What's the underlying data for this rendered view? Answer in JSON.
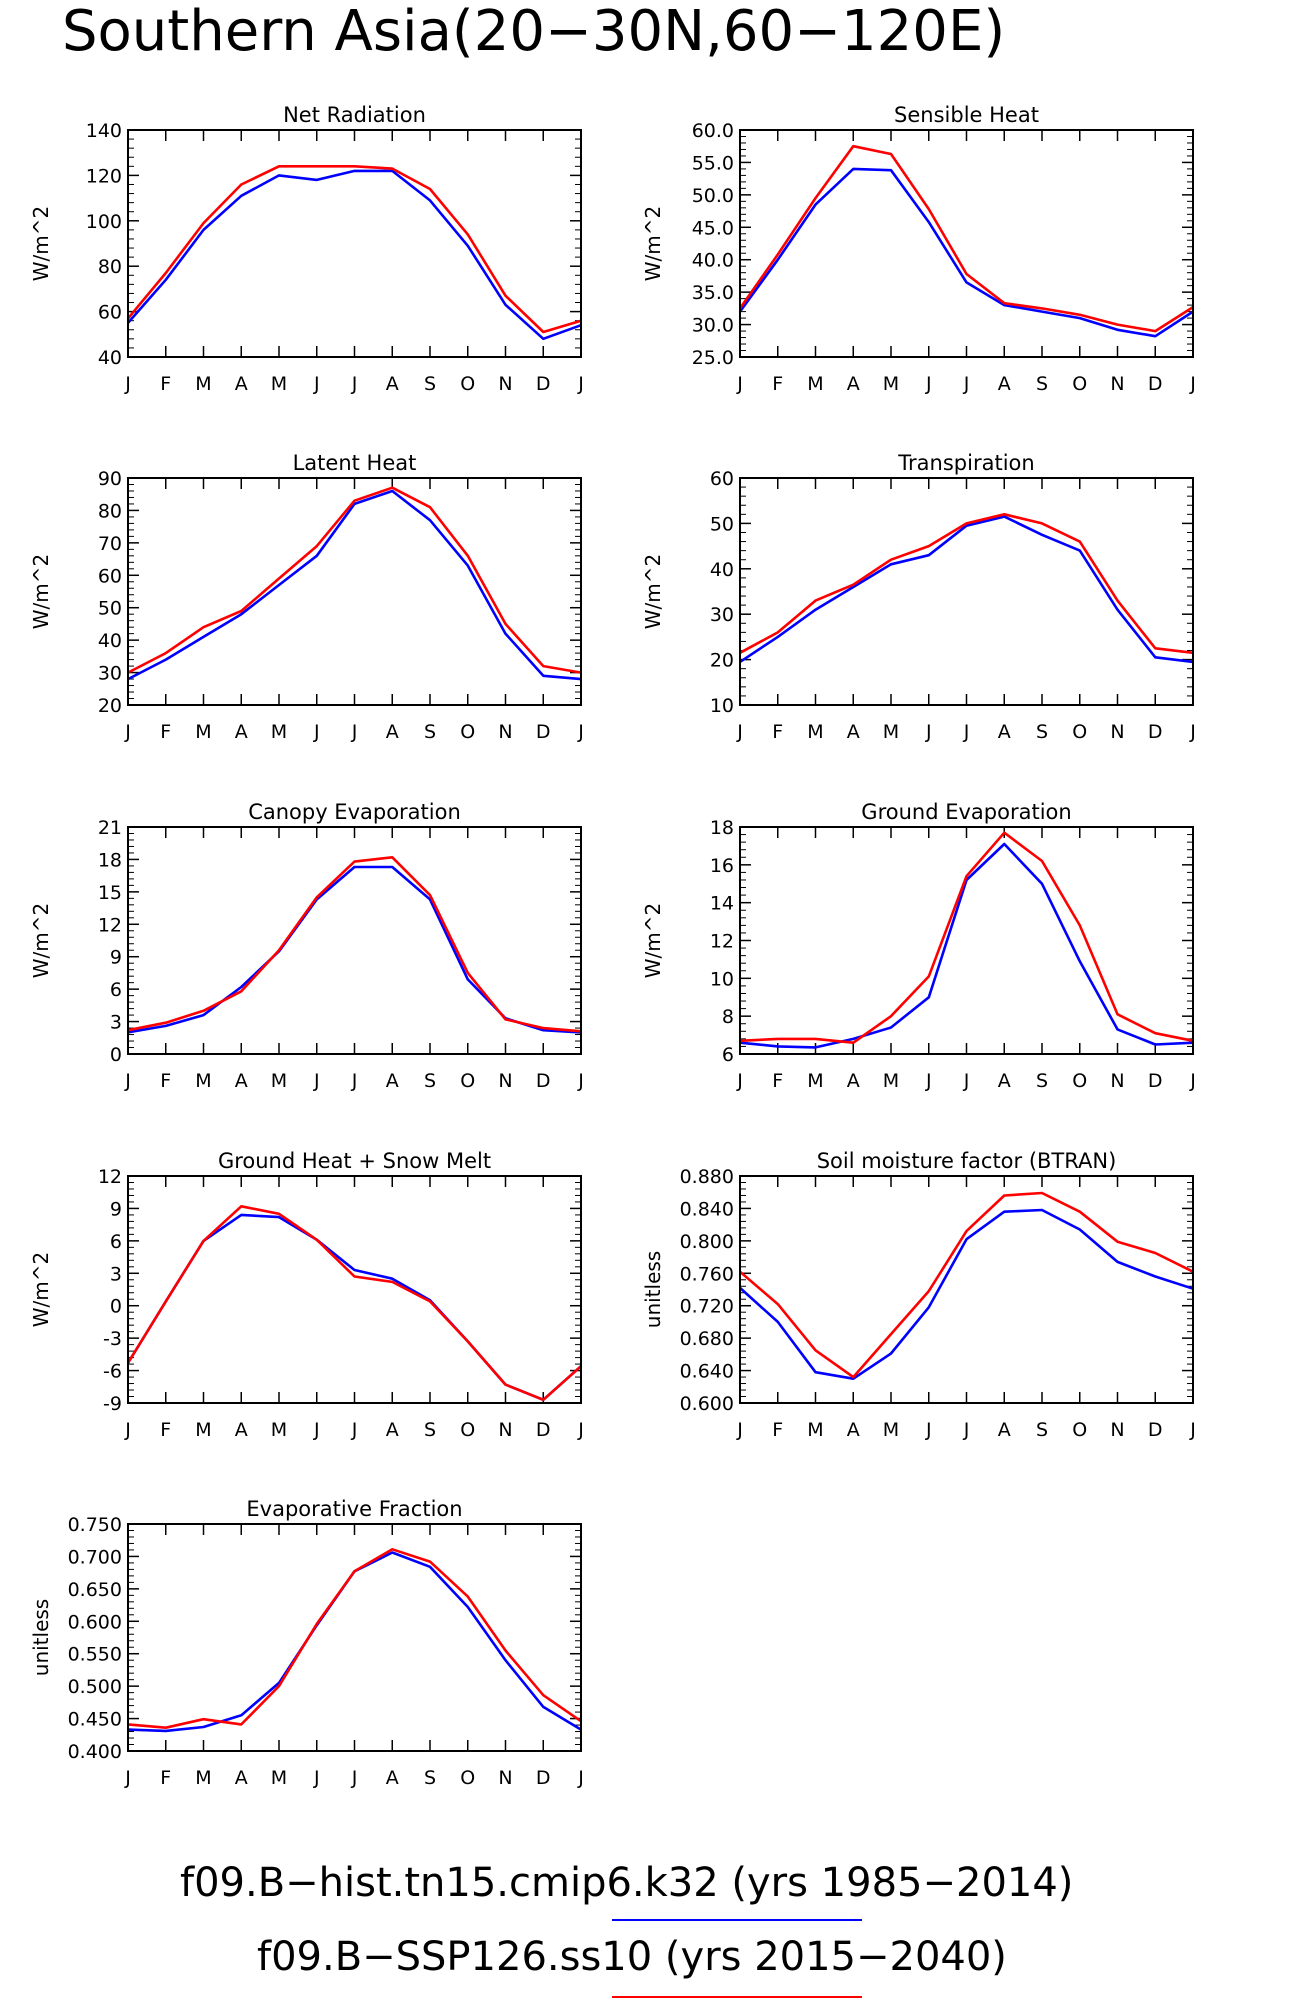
{
  "title": "Southern Asia(20−30N,60−120E)",
  "colors": {
    "series1": "#0000ff",
    "series2": "#ff0000"
  },
  "legend": [
    {
      "label": "f09.B−hist.tn15.cmip6.k32 (yrs 1985−2014)",
      "color": "#0000ff"
    },
    {
      "label": "f09.B−SSP126.ss10 (yrs 2015−2040)",
      "color": "#ff0000"
    }
  ],
  "chart_data": [
    {
      "type": "line",
      "title": "Net Radiation",
      "ylabel": "W/m^2",
      "categories": [
        "J",
        "F",
        "M",
        "A",
        "M",
        "J",
        "J",
        "A",
        "S",
        "O",
        "N",
        "D",
        "J"
      ],
      "ylim": [
        40,
        140
      ],
      "yticks": [
        "40",
        "60",
        "80",
        "100",
        "120",
        "140"
      ],
      "series": [
        {
          "color": "#0000ff",
          "values": [
            55,
            74,
            96,
            111,
            120,
            118,
            122,
            122,
            109,
            89,
            63,
            48,
            54
          ]
        },
        {
          "color": "#ff0000",
          "values": [
            57,
            77,
            99,
            116,
            124,
            124,
            124,
            123,
            114,
            94,
            67,
            51,
            56
          ]
        }
      ]
    },
    {
      "type": "line",
      "title": "Sensible Heat",
      "ylabel": "W/m^2",
      "categories": [
        "J",
        "F",
        "M",
        "A",
        "M",
        "J",
        "J",
        "A",
        "S",
        "O",
        "N",
        "D",
        "J"
      ],
      "ylim": [
        25,
        60
      ],
      "yticks": [
        "25.0",
        "30.0",
        "35.0",
        "40.0",
        "45.0",
        "50.0",
        "55.0",
        "60.0"
      ],
      "series": [
        {
          "color": "#0000ff",
          "values": [
            32.0,
            40.0,
            48.5,
            54.0,
            53.8,
            45.8,
            36.5,
            33.0,
            32.0,
            31.0,
            29.2,
            28.2,
            32.0
          ]
        },
        {
          "color": "#ff0000",
          "values": [
            32.5,
            40.8,
            49.5,
            57.5,
            56.3,
            47.8,
            37.8,
            33.3,
            32.5,
            31.5,
            30.0,
            29.0,
            32.7
          ]
        }
      ]
    },
    {
      "type": "line",
      "title": "Latent Heat",
      "ylabel": "W/m^2",
      "categories": [
        "J",
        "F",
        "M",
        "A",
        "M",
        "J",
        "J",
        "A",
        "S",
        "O",
        "N",
        "D",
        "J"
      ],
      "ylim": [
        20,
        90
      ],
      "yticks": [
        "20",
        "30",
        "40",
        "50",
        "60",
        "70",
        "80",
        "90"
      ],
      "series": [
        {
          "color": "#0000ff",
          "values": [
            28,
            34,
            41,
            48,
            57,
            66,
            82,
            86,
            77,
            63,
            42,
            29,
            28
          ]
        },
        {
          "color": "#ff0000",
          "values": [
            30,
            36,
            44,
            49,
            59,
            69,
            83,
            87,
            81,
            66,
            45,
            32,
            30
          ]
        }
      ]
    },
    {
      "type": "line",
      "title": "Transpiration",
      "ylabel": "W/m^2",
      "categories": [
        "J",
        "F",
        "M",
        "A",
        "M",
        "J",
        "J",
        "A",
        "S",
        "O",
        "N",
        "D",
        "J"
      ],
      "ylim": [
        10,
        60
      ],
      "yticks": [
        "10",
        "20",
        "30",
        "40",
        "50",
        "60"
      ],
      "series": [
        {
          "color": "#0000ff",
          "values": [
            19.5,
            25,
            31,
            36,
            41,
            43,
            49.5,
            51.5,
            47.5,
            44,
            31,
            20.5,
            19.5
          ]
        },
        {
          "color": "#ff0000",
          "values": [
            21.5,
            26,
            33,
            36.5,
            42,
            45,
            50,
            52,
            50,
            46,
            33,
            22.5,
            21.5
          ]
        }
      ]
    },
    {
      "type": "line",
      "title": "Canopy Evaporation",
      "ylabel": "W/m^2",
      "categories": [
        "J",
        "F",
        "M",
        "A",
        "M",
        "J",
        "J",
        "A",
        "S",
        "O",
        "N",
        "D",
        "J"
      ],
      "ylim": [
        0,
        21
      ],
      "yticks": [
        "0",
        "3",
        "6",
        "9",
        "12",
        "15",
        "18",
        "21"
      ],
      "series": [
        {
          "color": "#0000ff",
          "values": [
            2.0,
            2.6,
            3.6,
            6.2,
            9.5,
            14.3,
            17.3,
            17.3,
            14.3,
            6.9,
            3.3,
            2.2,
            2.0
          ]
        },
        {
          "color": "#ff0000",
          "values": [
            2.2,
            2.9,
            4.0,
            5.8,
            9.6,
            14.5,
            17.8,
            18.2,
            14.7,
            7.5,
            3.2,
            2.4,
            2.1
          ]
        }
      ]
    },
    {
      "type": "line",
      "title": "Ground Evaporation",
      "ylabel": "W/m^2",
      "categories": [
        "J",
        "F",
        "M",
        "A",
        "M",
        "J",
        "J",
        "A",
        "S",
        "O",
        "N",
        "D",
        "J"
      ],
      "ylim": [
        6,
        18
      ],
      "yticks": [
        "6",
        "8",
        "10",
        "12",
        "14",
        "16",
        "18"
      ],
      "series": [
        {
          "color": "#0000ff",
          "values": [
            6.6,
            6.4,
            6.35,
            6.8,
            7.4,
            9.0,
            15.2,
            17.1,
            15.0,
            10.9,
            7.3,
            6.5,
            6.6
          ]
        },
        {
          "color": "#ff0000",
          "values": [
            6.7,
            6.8,
            6.8,
            6.6,
            8.0,
            10.1,
            15.4,
            17.7,
            16.2,
            12.8,
            8.1,
            7.1,
            6.7
          ]
        }
      ]
    },
    {
      "type": "line",
      "title": "Ground Heat + Snow Melt",
      "ylabel": "W/m^2",
      "categories": [
        "J",
        "F",
        "M",
        "A",
        "M",
        "J",
        "J",
        "A",
        "S",
        "O",
        "N",
        "D",
        "J"
      ],
      "ylim": [
        -9,
        12
      ],
      "yticks": [
        "-9",
        "-6",
        "-3",
        "0",
        "3",
        "6",
        "9",
        "12"
      ],
      "series": [
        {
          "color": "#0000ff",
          "values": [
            -5.3,
            0.4,
            6.0,
            8.4,
            8.2,
            6.1,
            3.3,
            2.5,
            0.5,
            -3.3,
            -7.3,
            -8.7,
            -5.6
          ]
        },
        {
          "color": "#ff0000",
          "values": [
            -5.3,
            0.4,
            6.0,
            9.2,
            8.5,
            6.1,
            2.7,
            2.2,
            0.4,
            -3.3,
            -7.3,
            -8.7,
            -5.6
          ]
        }
      ]
    },
    {
      "type": "line",
      "title": "Soil moisture factor (BTRAN)",
      "ylabel": "unitless",
      "categories": [
        "J",
        "F",
        "M",
        "A",
        "M",
        "J",
        "J",
        "A",
        "S",
        "O",
        "N",
        "D",
        "J"
      ],
      "ylim": [
        0.6,
        0.88
      ],
      "yticks": [
        "0.600",
        "0.640",
        "0.680",
        "0.720",
        "0.760",
        "0.800",
        "0.840",
        "0.880"
      ],
      "series": [
        {
          "color": "#0000ff",
          "values": [
            0.742,
            0.7,
            0.638,
            0.63,
            0.661,
            0.718,
            0.802,
            0.836,
            0.838,
            0.814,
            0.774,
            0.756,
            0.741
          ]
        },
        {
          "color": "#ff0000",
          "values": [
            0.762,
            0.722,
            0.665,
            0.632,
            0.685,
            0.738,
            0.812,
            0.856,
            0.859,
            0.836,
            0.799,
            0.785,
            0.762
          ]
        }
      ]
    },
    {
      "type": "line",
      "title": "Evaporative Fraction",
      "ylabel": "unitless",
      "categories": [
        "J",
        "F",
        "M",
        "A",
        "M",
        "J",
        "J",
        "A",
        "S",
        "O",
        "N",
        "D",
        "J"
      ],
      "ylim": [
        0.4,
        0.75
      ],
      "yticks": [
        "0.400",
        "0.450",
        "0.500",
        "0.550",
        "0.600",
        "0.650",
        "0.700",
        "0.750"
      ],
      "series": [
        {
          "color": "#0000ff",
          "values": [
            0.433,
            0.431,
            0.437,
            0.455,
            0.505,
            0.594,
            0.677,
            0.706,
            0.684,
            0.622,
            0.54,
            0.468,
            0.433
          ]
        },
        {
          "color": "#ff0000",
          "values": [
            0.441,
            0.436,
            0.449,
            0.441,
            0.5,
            0.596,
            0.677,
            0.711,
            0.692,
            0.638,
            0.555,
            0.486,
            0.446
          ]
        }
      ]
    }
  ]
}
